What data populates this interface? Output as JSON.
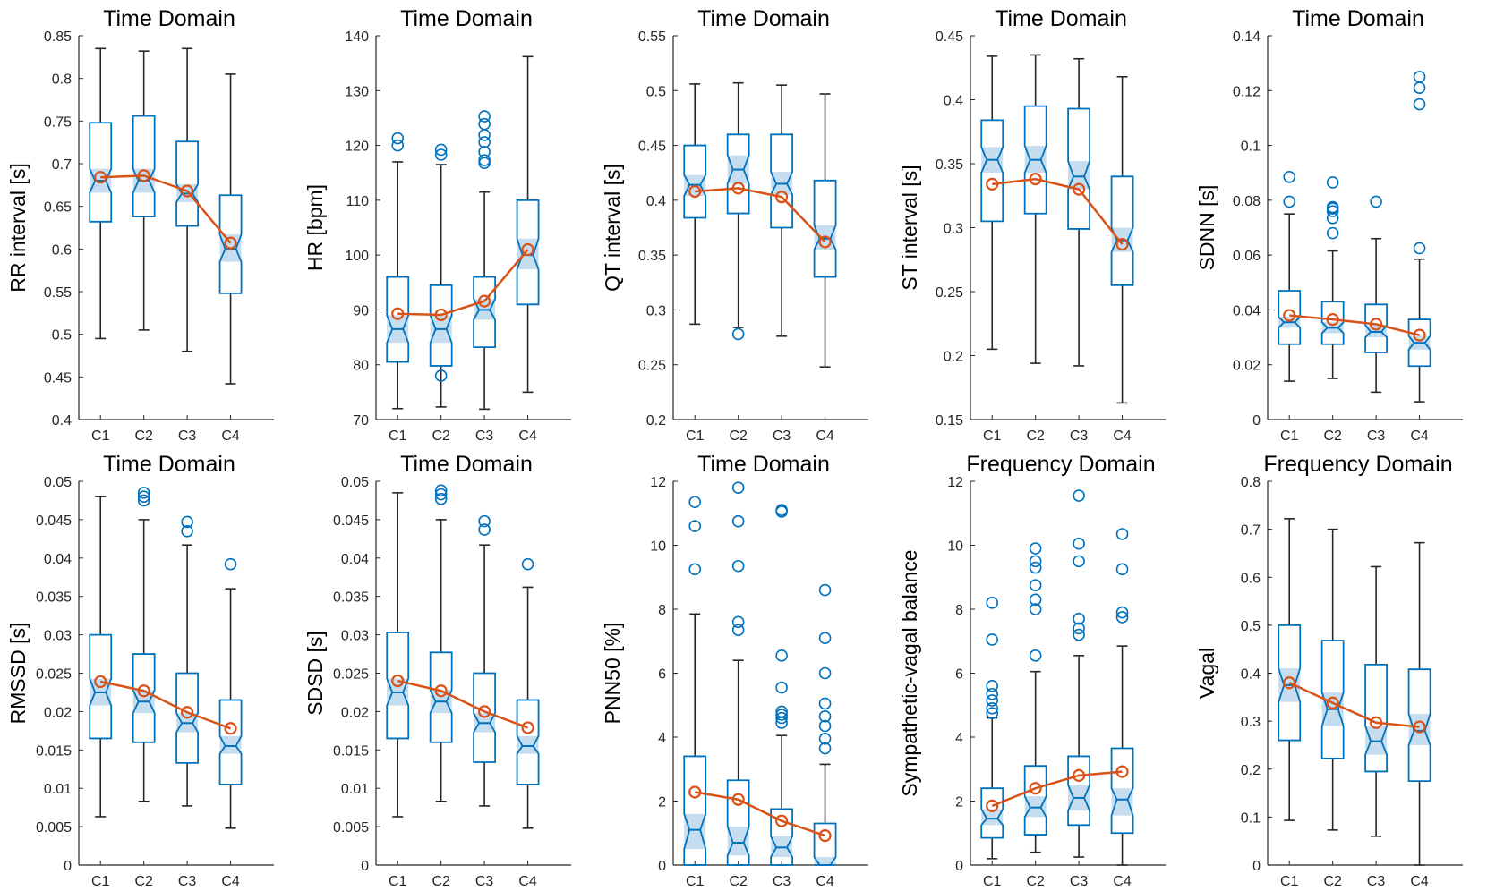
{
  "colors": {
    "box": "#0072BD",
    "notch": "#C6DDF0",
    "whisker": "#262626",
    "mean": "#D95319",
    "axis": "#262626"
  },
  "chart_data": [
    {
      "type": "boxplot",
      "title": "Time Domain",
      "ylabel": "RR interval [s]",
      "ylim": [
        0.4,
        0.85
      ],
      "yticks": [
        0.4,
        0.45,
        0.5,
        0.55,
        0.6,
        0.65,
        0.7,
        0.75,
        0.8,
        0.85
      ],
      "ytick_labels": [
        "0.4",
        "0.45",
        "0.5",
        "0.55",
        "0.6",
        "0.65",
        "0.7",
        "0.75",
        "0.8",
        "0.85"
      ],
      "categories": [
        "C1",
        "C2",
        "C3",
        "C4"
      ],
      "boxes": [
        {
          "q1": 0.632,
          "median": 0.68,
          "q3": 0.748,
          "wlo": 0.495,
          "whi": 0.835,
          "nlo": 0.666,
          "nhi": 0.694,
          "mean": 0.684,
          "outliers": []
        },
        {
          "q1": 0.638,
          "median": 0.68,
          "q3": 0.756,
          "wlo": 0.505,
          "whi": 0.832,
          "nlo": 0.666,
          "nhi": 0.694,
          "mean": 0.686,
          "outliers": []
        },
        {
          "q1": 0.627,
          "median": 0.665,
          "q3": 0.726,
          "wlo": 0.48,
          "whi": 0.835,
          "nlo": 0.655,
          "nhi": 0.676,
          "mean": 0.668,
          "outliers": []
        },
        {
          "q1": 0.548,
          "median": 0.6,
          "q3": 0.663,
          "wlo": 0.442,
          "whi": 0.805,
          "nlo": 0.585,
          "nhi": 0.617,
          "mean": 0.607,
          "outliers": []
        }
      ]
    },
    {
      "type": "boxplot",
      "title": "Time Domain",
      "ylabel": "HR [bpm]",
      "ylim": [
        70,
        140
      ],
      "yticks": [
        70,
        80,
        90,
        100,
        110,
        120,
        130,
        140
      ],
      "ytick_labels": [
        "70",
        "80",
        "90",
        "100",
        "110",
        "120",
        "130",
        "140"
      ],
      "categories": [
        "C1",
        "C2",
        "C3",
        "C4"
      ],
      "boxes": [
        {
          "q1": 80.5,
          "median": 86.5,
          "q3": 96,
          "wlo": 72,
          "whi": 117,
          "nlo": 84,
          "nhi": 89,
          "mean": 89.3,
          "outliers": [
            120,
            121.3
          ]
        },
        {
          "q1": 79.8,
          "median": 86.5,
          "q3": 94.5,
          "wlo": 72.3,
          "whi": 116.5,
          "nlo": 84,
          "nhi": 89,
          "mean": 89.1,
          "outliers": [
            118.3,
            119.2,
            78
          ]
        },
        {
          "q1": 83.2,
          "median": 90,
          "q3": 96,
          "wlo": 71.9,
          "whi": 111.5,
          "nlo": 88.2,
          "nhi": 92,
          "mean": 91.6,
          "outliers": [
            116.8,
            117.3,
            118.8,
            120.6,
            121.9,
            123.9,
            125.3
          ]
        },
        {
          "q1": 91,
          "median": 100,
          "q3": 110,
          "wlo": 75,
          "whi": 136.2,
          "nlo": 97.4,
          "nhi": 103,
          "mean": 101,
          "outliers": []
        }
      ]
    },
    {
      "type": "boxplot",
      "title": "Time Domain",
      "ylabel": "QT interval [s]",
      "ylim": [
        0.2,
        0.55
      ],
      "yticks": [
        0.2,
        0.25,
        0.3,
        0.35,
        0.4,
        0.45,
        0.5,
        0.55
      ],
      "ytick_labels": [
        "0.2",
        "0.25",
        "0.3",
        "0.35",
        "0.4",
        "0.45",
        "0.5",
        "0.55"
      ],
      "categories": [
        "C1",
        "C2",
        "C3",
        "C4"
      ],
      "boxes": [
        {
          "q1": 0.384,
          "median": 0.414,
          "q3": 0.45,
          "wlo": 0.287,
          "whi": 0.506,
          "nlo": 0.404,
          "nhi": 0.423,
          "mean": 0.408,
          "outliers": []
        },
        {
          "q1": 0.388,
          "median": 0.428,
          "q3": 0.46,
          "wlo": 0.284,
          "whi": 0.507,
          "nlo": 0.415,
          "nhi": 0.441,
          "mean": 0.411,
          "outliers": [
            0.278
          ]
        },
        {
          "q1": 0.375,
          "median": 0.415,
          "q3": 0.46,
          "wlo": 0.276,
          "whi": 0.505,
          "nlo": 0.405,
          "nhi": 0.426,
          "mean": 0.403,
          "outliers": []
        },
        {
          "q1": 0.33,
          "median": 0.365,
          "q3": 0.418,
          "wlo": 0.248,
          "whi": 0.497,
          "nlo": 0.355,
          "nhi": 0.377,
          "mean": 0.362,
          "outliers": []
        }
      ]
    },
    {
      "type": "boxplot",
      "title": "Time Domain",
      "ylabel": "ST interval [s]",
      "ylim": [
        0.15,
        0.45
      ],
      "yticks": [
        0.15,
        0.2,
        0.25,
        0.3,
        0.35,
        0.4,
        0.45
      ],
      "ytick_labels": [
        "0.15",
        "0.2",
        "0.25",
        "0.3",
        "0.35",
        "0.4",
        "0.45"
      ],
      "categories": [
        "C1",
        "C2",
        "C3",
        "C4"
      ],
      "boxes": [
        {
          "q1": 0.305,
          "median": 0.353,
          "q3": 0.384,
          "wlo": 0.205,
          "whi": 0.434,
          "nlo": 0.343,
          "nhi": 0.363,
          "mean": 0.334,
          "outliers": []
        },
        {
          "q1": 0.311,
          "median": 0.353,
          "q3": 0.395,
          "wlo": 0.194,
          "whi": 0.435,
          "nlo": 0.343,
          "nhi": 0.364,
          "mean": 0.338,
          "outliers": []
        },
        {
          "q1": 0.299,
          "median": 0.34,
          "q3": 0.393,
          "wlo": 0.192,
          "whi": 0.432,
          "nlo": 0.33,
          "nhi": 0.352,
          "mean": 0.33,
          "outliers": []
        },
        {
          "q1": 0.255,
          "median": 0.29,
          "q3": 0.34,
          "wlo": 0.163,
          "whi": 0.418,
          "nlo": 0.281,
          "nhi": 0.3,
          "mean": 0.287,
          "outliers": []
        }
      ]
    },
    {
      "type": "boxplot",
      "title": "Time Domain",
      "ylabel": "SDNN [s]",
      "ylim": [
        0,
        0.14
      ],
      "yticks": [
        0,
        0.02,
        0.04,
        0.06,
        0.08,
        0.1,
        0.12,
        0.14
      ],
      "ytick_labels": [
        "0",
        "0.02",
        "0.04",
        "0.06",
        "0.08",
        "0.1",
        "0.12",
        "0.14"
      ],
      "categories": [
        "C1",
        "C2",
        "C3",
        "C4"
      ],
      "boxes": [
        {
          "q1": 0.0275,
          "median": 0.0355,
          "q3": 0.047,
          "wlo": 0.014,
          "whi": 0.075,
          "nlo": 0.0335,
          "nhi": 0.0375,
          "mean": 0.038,
          "outliers": [
            0.0795,
            0.0885
          ]
        },
        {
          "q1": 0.0275,
          "median": 0.0335,
          "q3": 0.043,
          "wlo": 0.015,
          "whi": 0.0615,
          "nlo": 0.0315,
          "nhi": 0.0355,
          "mean": 0.0365,
          "outliers": [
            0.068,
            0.0735,
            0.076,
            0.077,
            0.0775,
            0.0865
          ]
        },
        {
          "q1": 0.0245,
          "median": 0.032,
          "q3": 0.042,
          "wlo": 0.01,
          "whi": 0.066,
          "nlo": 0.03,
          "nhi": 0.0345,
          "mean": 0.0348,
          "outliers": [
            0.0795
          ]
        },
        {
          "q1": 0.0195,
          "median": 0.028,
          "q3": 0.0365,
          "wlo": 0.0065,
          "whi": 0.0585,
          "nlo": 0.0255,
          "nhi": 0.0305,
          "mean": 0.0308,
          "outliers": [
            0.0625,
            0.115,
            0.121,
            0.125
          ]
        }
      ]
    },
    {
      "type": "boxplot",
      "title": "Time Domain",
      "ylabel": "RMSSD [s]",
      "ylim": [
        0,
        0.05
      ],
      "yticks": [
        0,
        0.005,
        0.01,
        0.015,
        0.02,
        0.025,
        0.03,
        0.035,
        0.04,
        0.045,
        0.05
      ],
      "ytick_labels": [
        "0",
        "0.005",
        "0.01",
        "0.015",
        "0.02",
        "0.025",
        "0.03",
        "0.035",
        "0.04",
        "0.045",
        "0.05"
      ],
      "categories": [
        "C1",
        "C2",
        "C3",
        "C4"
      ],
      "boxes": [
        {
          "q1": 0.0165,
          "median": 0.0225,
          "q3": 0.03,
          "wlo": 0.0063,
          "whi": 0.048,
          "nlo": 0.0208,
          "nhi": 0.0243,
          "mean": 0.0239,
          "outliers": []
        },
        {
          "q1": 0.016,
          "median": 0.0213,
          "q3": 0.0275,
          "wlo": 0.0083,
          "whi": 0.045,
          "nlo": 0.0198,
          "nhi": 0.0228,
          "mean": 0.0227,
          "outliers": [
            0.0475,
            0.048,
            0.0485
          ]
        },
        {
          "q1": 0.0133,
          "median": 0.0185,
          "q3": 0.025,
          "wlo": 0.0077,
          "whi": 0.0417,
          "nlo": 0.0173,
          "nhi": 0.0198,
          "mean": 0.0199,
          "outliers": [
            0.0435,
            0.0447
          ]
        },
        {
          "q1": 0.0105,
          "median": 0.0155,
          "q3": 0.0215,
          "wlo": 0.0048,
          "whi": 0.036,
          "nlo": 0.0145,
          "nhi": 0.0168,
          "mean": 0.0178,
          "outliers": [
            0.0392
          ]
        }
      ]
    },
    {
      "type": "boxplot",
      "title": "Time Domain",
      "ylabel": "SDSD [s]",
      "ylim": [
        0,
        0.05
      ],
      "yticks": [
        0,
        0.005,
        0.01,
        0.015,
        0.02,
        0.025,
        0.03,
        0.035,
        0.04,
        0.045,
        0.05
      ],
      "ytick_labels": [
        "0",
        "0.005",
        "0.01",
        "0.015",
        "0.02",
        "0.025",
        "0.03",
        "0.035",
        "0.04",
        "0.045",
        "0.05"
      ],
      "categories": [
        "C1",
        "C2",
        "C3",
        "C4"
      ],
      "boxes": [
        {
          "q1": 0.0165,
          "median": 0.0225,
          "q3": 0.0303,
          "wlo": 0.0063,
          "whi": 0.0485,
          "nlo": 0.0208,
          "nhi": 0.0243,
          "mean": 0.024,
          "outliers": []
        },
        {
          "q1": 0.016,
          "median": 0.0213,
          "q3": 0.0277,
          "wlo": 0.0083,
          "whi": 0.045,
          "nlo": 0.0198,
          "nhi": 0.0228,
          "mean": 0.0227,
          "outliers": [
            0.0477,
            0.0483,
            0.0488
          ]
        },
        {
          "q1": 0.0134,
          "median": 0.0185,
          "q3": 0.025,
          "wlo": 0.0077,
          "whi": 0.0417,
          "nlo": 0.0173,
          "nhi": 0.0198,
          "mean": 0.02,
          "outliers": [
            0.0437,
            0.0448
          ]
        },
        {
          "q1": 0.0105,
          "median": 0.0155,
          "q3": 0.0215,
          "wlo": 0.0048,
          "whi": 0.0362,
          "nlo": 0.0145,
          "nhi": 0.0168,
          "mean": 0.0179,
          "outliers": [
            0.0392
          ]
        }
      ]
    },
    {
      "type": "boxplot",
      "title": "Time Domain",
      "ylabel": "PNN50 [%]",
      "ylim": [
        0,
        12
      ],
      "yticks": [
        0,
        2,
        4,
        6,
        8,
        10,
        12
      ],
      "ytick_labels": [
        "0",
        "2",
        "4",
        "6",
        "8",
        "10",
        "12"
      ],
      "categories": [
        "C1",
        "C2",
        "C3",
        "C4"
      ],
      "boxes": [
        {
          "q1": 0,
          "median": 1.1,
          "q3": 3.4,
          "wlo": 0,
          "whi": 7.85,
          "nlo": 0.5,
          "nhi": 1.6,
          "mean": 2.28,
          "outliers": [
            9.25,
            10.6,
            11.35
          ]
        },
        {
          "q1": 0,
          "median": 0.7,
          "q3": 2.65,
          "wlo": 0,
          "whi": 6.4,
          "nlo": 0.3,
          "nhi": 1.2,
          "mean": 2.05,
          "outliers": [
            7.35,
            7.6,
            9.35,
            10.75,
            11.8
          ]
        },
        {
          "q1": 0,
          "median": 0.55,
          "q3": 1.75,
          "wlo": 0,
          "whi": 4.05,
          "nlo": 0.25,
          "nhi": 0.9,
          "mean": 1.38,
          "outliers": [
            4.45,
            4.6,
            4.7,
            4.8,
            5.55,
            6.55,
            11.05,
            11.1
          ]
        },
        {
          "q1": 0,
          "median": 0,
          "q3": 1.3,
          "wlo": 0,
          "whi": 3.15,
          "nlo": 0,
          "nhi": 0.25,
          "mean": 0.92,
          "outliers": [
            3.65,
            3.95,
            4.35,
            4.65,
            5.05,
            6.0,
            7.1,
            8.6
          ]
        }
      ]
    },
    {
      "type": "boxplot",
      "title": "Frequency Domain",
      "ylabel": "Sympathetic-vagal balance",
      "ylim": [
        0,
        12
      ],
      "yticks": [
        0,
        2,
        4,
        6,
        8,
        10,
        12
      ],
      "ytick_labels": [
        "0",
        "2",
        "4",
        "6",
        "8",
        "10",
        "12"
      ],
      "categories": [
        "C1",
        "C2",
        "C3",
        "C4"
      ],
      "boxes": [
        {
          "q1": 0.85,
          "median": 1.45,
          "q3": 2.4,
          "wlo": 0.2,
          "whi": 4.6,
          "nlo": 1.25,
          "nhi": 1.75,
          "mean": 1.85,
          "outliers": [
            4.75,
            4.9,
            5.15,
            5.35,
            5.6,
            7.05,
            8.2
          ]
        },
        {
          "q1": 0.95,
          "median": 1.8,
          "q3": 3.1,
          "wlo": 0.4,
          "whi": 6.05,
          "nlo": 1.5,
          "nhi": 2.15,
          "mean": 2.4,
          "outliers": [
            6.55,
            8.0,
            8.3,
            8.75,
            9.3,
            9.5,
            9.9
          ]
        },
        {
          "q1": 1.25,
          "median": 2.1,
          "q3": 3.4,
          "wlo": 0.25,
          "whi": 6.55,
          "nlo": 1.7,
          "nhi": 2.5,
          "mean": 2.8,
          "outliers": [
            7.2,
            7.4,
            7.7,
            9.5,
            10.05,
            11.55
          ]
        },
        {
          "q1": 1.0,
          "median": 2.05,
          "q3": 3.65,
          "wlo": 0,
          "whi": 6.85,
          "nlo": 1.55,
          "nhi": 2.4,
          "mean": 2.92,
          "outliers": [
            7.75,
            7.9,
            9.25,
            10.35
          ]
        }
      ]
    },
    {
      "type": "boxplot",
      "title": "Frequency Domain",
      "ylabel": "Vagal",
      "ylim": [
        0,
        0.8
      ],
      "yticks": [
        0,
        0.1,
        0.2,
        0.3,
        0.4,
        0.5,
        0.6,
        0.7,
        0.8
      ],
      "ytick_labels": [
        "0",
        "0.1",
        "0.2",
        "0.3",
        "0.4",
        "0.5",
        "0.6",
        "0.7",
        "0.8"
      ],
      "categories": [
        "C1",
        "C2",
        "C3",
        "C4"
      ],
      "boxes": [
        {
          "q1": 0.26,
          "median": 0.375,
          "q3": 0.5,
          "wlo": 0.093,
          "whi": 0.722,
          "nlo": 0.34,
          "nhi": 0.41,
          "mean": 0.38,
          "outliers": []
        },
        {
          "q1": 0.222,
          "median": 0.325,
          "q3": 0.468,
          "wlo": 0.073,
          "whi": 0.7,
          "nlo": 0.29,
          "nhi": 0.36,
          "mean": 0.338,
          "outliers": []
        },
        {
          "q1": 0.195,
          "median": 0.258,
          "q3": 0.418,
          "wlo": 0.06,
          "whi": 0.622,
          "nlo": 0.23,
          "nhi": 0.29,
          "mean": 0.297,
          "outliers": []
        },
        {
          "q1": 0.175,
          "median": 0.28,
          "q3": 0.408,
          "wlo": 0,
          "whi": 0.672,
          "nlo": 0.25,
          "nhi": 0.315,
          "mean": 0.288,
          "outliers": []
        }
      ]
    }
  ]
}
